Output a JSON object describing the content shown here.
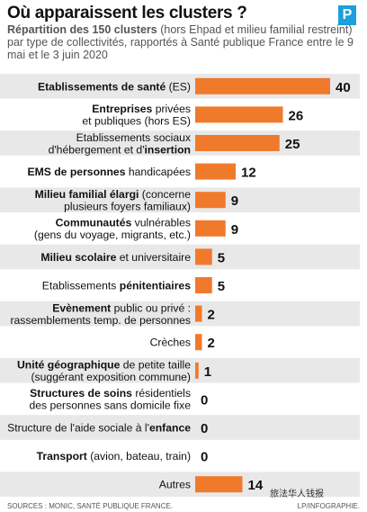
{
  "header": {
    "title": "Où apparaissent les clusters ?",
    "logo_letter": "P",
    "subtitle_lead": "Répartition des 150 clusters",
    "subtitle_rest": " (hors Ehpad et milieu familial restreint) par type de collectivités, rapportés à Santé publique France entre le 9 mai et le 3 juin 2020"
  },
  "chart_data": {
    "type": "bar",
    "orientation": "horizontal",
    "title": "Où apparaissent les clusters ?",
    "categories": [
      {
        "parts": [
          [
            "Etablissements de santé",
            true
          ],
          [
            " (ES)",
            false
          ]
        ]
      },
      {
        "parts": [
          [
            "Entreprises",
            true
          ],
          [
            " privées",
            false
          ],
          [
            "\n",
            false
          ],
          [
            "et publiques (hors ES)",
            false
          ]
        ]
      },
      {
        "parts": [
          [
            "Etablissements sociaux",
            false
          ],
          [
            "\n",
            false
          ],
          [
            "d'hébergement et d'",
            false
          ],
          [
            "insertion",
            true
          ]
        ]
      },
      {
        "parts": [
          [
            "EMS de personnes",
            true
          ],
          [
            " handicapées",
            false
          ]
        ]
      },
      {
        "parts": [
          [
            "Milieu familial élargi",
            true
          ],
          [
            " (concerne",
            false
          ],
          [
            "\n",
            false
          ],
          [
            "plusieurs foyers familiaux)",
            false
          ]
        ]
      },
      {
        "parts": [
          [
            "Communautés",
            true
          ],
          [
            " vulnérables",
            false
          ],
          [
            "\n",
            false
          ],
          [
            "(gens du voyage, migrants, etc.)",
            false
          ]
        ]
      },
      {
        "parts": [
          [
            "Milieu scolaire",
            true
          ],
          [
            " et universitaire",
            false
          ]
        ]
      },
      {
        "parts": [
          [
            "Etablissements ",
            false
          ],
          [
            "pénitentiaires",
            true
          ]
        ]
      },
      {
        "parts": [
          [
            "Evènement",
            true
          ],
          [
            " public ou privé :",
            false
          ],
          [
            "\n",
            false
          ],
          [
            "rassemblements temp. de personnes",
            false
          ]
        ]
      },
      {
        "parts": [
          [
            "Crèches",
            false
          ]
        ]
      },
      {
        "parts": [
          [
            "Unité géographique",
            true
          ],
          [
            " de petite taille",
            false
          ],
          [
            "\n",
            false
          ],
          [
            "(suggérant exposition commune)",
            false
          ]
        ]
      },
      {
        "parts": [
          [
            "Structures de soins",
            true
          ],
          [
            " résidentiels",
            false
          ],
          [
            "\n",
            false
          ],
          [
            "des personnes sans domicile fixe",
            false
          ]
        ]
      },
      {
        "parts": [
          [
            "Structure de l'aide sociale à l'",
            false
          ],
          [
            "enfance",
            true
          ]
        ]
      },
      {
        "parts": [
          [
            "Transport",
            true
          ],
          [
            " (avion, bateau, train)",
            false
          ]
        ]
      },
      {
        "parts": [
          [
            "Autres",
            false
          ]
        ]
      }
    ],
    "values": [
      40,
      26,
      25,
      12,
      9,
      9,
      5,
      5,
      2,
      2,
      1,
      0,
      0,
      0,
      14
    ],
    "xlim": [
      0,
      40
    ],
    "colors": {
      "bar": "#f07a2b",
      "band": "#e8e8e8",
      "value_text": "#111111"
    }
  },
  "footer": {
    "source": "SOURCES : MONIC, SANTÉ PUBLIQUE FRANCE.",
    "credit": "LP/INFOGRAPHIE.",
    "watermark": "旅法华人钱报"
  }
}
